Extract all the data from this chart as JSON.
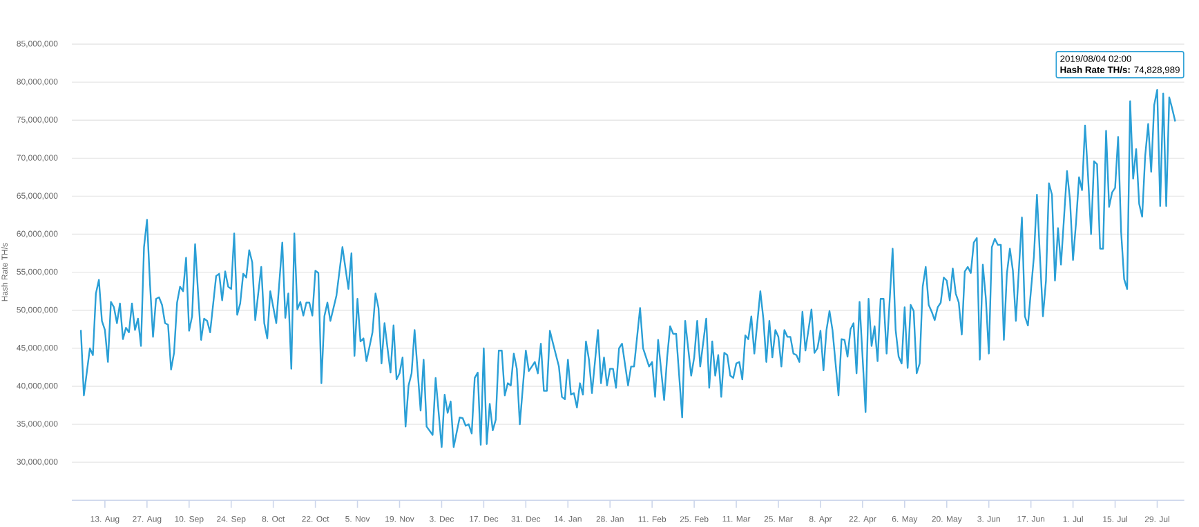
{
  "chart_data": {
    "type": "line",
    "ylabel": "Hash Rate TH/s",
    "xlim": [
      "2018-08-02",
      "2019-08-07"
    ],
    "ylim": [
      25000000,
      85000000
    ],
    "xticks": [
      {
        "value": "2018-08-13",
        "label": "13. Aug"
      },
      {
        "value": "2018-08-27",
        "label": "27. Aug"
      },
      {
        "value": "2018-09-10",
        "label": "10. Sep"
      },
      {
        "value": "2018-09-24",
        "label": "24. Sep"
      },
      {
        "value": "2018-10-08",
        "label": "8. Oct"
      },
      {
        "value": "2018-10-22",
        "label": "22. Oct"
      },
      {
        "value": "2018-11-05",
        "label": "5. Nov"
      },
      {
        "value": "2018-11-19",
        "label": "19. Nov"
      },
      {
        "value": "2018-12-03",
        "label": "3. Dec"
      },
      {
        "value": "2018-12-17",
        "label": "17. Dec"
      },
      {
        "value": "2018-12-31",
        "label": "31. Dec"
      },
      {
        "value": "2019-01-14",
        "label": "14. Jan"
      },
      {
        "value": "2019-01-28",
        "label": "28. Jan"
      },
      {
        "value": "2019-02-11",
        "label": "11. Feb"
      },
      {
        "value": "2019-02-25",
        "label": "25. Feb"
      },
      {
        "value": "2019-03-11",
        "label": "11. Mar"
      },
      {
        "value": "2019-03-25",
        "label": "25. Mar"
      },
      {
        "value": "2019-04-08",
        "label": "8. Apr"
      },
      {
        "value": "2019-04-22",
        "label": "22. Apr"
      },
      {
        "value": "2019-05-06",
        "label": "6. May"
      },
      {
        "value": "2019-05-20",
        "label": "20. May"
      },
      {
        "value": "2019-06-03",
        "label": "3. Jun"
      },
      {
        "value": "2019-06-17",
        "label": "17. Jun"
      },
      {
        "value": "2019-07-01",
        "label": "1. Jul"
      },
      {
        "value": "2019-07-15",
        "label": "15. Jul"
      },
      {
        "value": "2019-07-29",
        "label": "29. Jul"
      }
    ],
    "yticks": [
      {
        "value": 30000000,
        "label": "30,000,000"
      },
      {
        "value": 35000000,
        "label": "35,000,000"
      },
      {
        "value": 40000000,
        "label": "40,000,000"
      },
      {
        "value": 45000000,
        "label": "45,000,000"
      },
      {
        "value": 50000000,
        "label": "50,000,000"
      },
      {
        "value": 55000000,
        "label": "55,000,000"
      },
      {
        "value": 60000000,
        "label": "60,000,000"
      },
      {
        "value": 65000000,
        "label": "65,000,000"
      },
      {
        "value": 70000000,
        "label": "70,000,000"
      },
      {
        "value": 75000000,
        "label": "75,000,000"
      },
      {
        "value": 80000000,
        "label": "80,000,000"
      },
      {
        "value": 85000000,
        "label": "85,000,000"
      }
    ],
    "grid": "y",
    "x": [
      "2018-08-05",
      "2018-08-06",
      "2018-08-08",
      "2018-08-09",
      "2018-08-10",
      "2018-08-11",
      "2018-08-12",
      "2018-08-13",
      "2018-08-14",
      "2018-08-15",
      "2018-08-16",
      "2018-08-17",
      "2018-08-18",
      "2018-08-19",
      "2018-08-20",
      "2018-08-21",
      "2018-08-22",
      "2018-08-23",
      "2018-08-24",
      "2018-08-25",
      "2018-08-26",
      "2018-08-27",
      "2018-08-28",
      "2018-08-29",
      "2018-08-30",
      "2018-08-31",
      "2018-09-01",
      "2018-09-02",
      "2018-09-03",
      "2018-09-04",
      "2018-09-05",
      "2018-09-06",
      "2018-09-07",
      "2018-09-08",
      "2018-09-09",
      "2018-09-10",
      "2018-09-11",
      "2018-09-12",
      "2018-09-13",
      "2018-09-14",
      "2018-09-15",
      "2018-09-16",
      "2018-09-17",
      "2018-09-19",
      "2018-09-20",
      "2018-09-21",
      "2018-09-22",
      "2018-09-23",
      "2018-09-24",
      "2018-09-25",
      "2018-09-26",
      "2018-09-27",
      "2018-09-28",
      "2018-09-29",
      "2018-09-30",
      "2018-10-01",
      "2018-10-02",
      "2018-10-04",
      "2018-10-05",
      "2018-10-06",
      "2018-10-07",
      "2018-10-09",
      "2018-10-11",
      "2018-10-12",
      "2018-10-13",
      "2018-10-14",
      "2018-10-15",
      "2018-10-16",
      "2018-10-17",
      "2018-10-18",
      "2018-10-19",
      "2018-10-20",
      "2018-10-21",
      "2018-10-22",
      "2018-10-23",
      "2018-10-24",
      "2018-10-25",
      "2018-10-26",
      "2018-10-27",
      "2018-10-29",
      "2018-10-31",
      "2018-11-02",
      "2018-11-03",
      "2018-11-04",
      "2018-11-05",
      "2018-11-06",
      "2018-11-07",
      "2018-11-08",
      "2018-11-10",
      "2018-11-11",
      "2018-11-12",
      "2018-11-13",
      "2018-11-14",
      "2018-11-15",
      "2018-11-16",
      "2018-11-17",
      "2018-11-18",
      "2018-11-19",
      "2018-11-20",
      "2018-11-21",
      "2018-11-22",
      "2018-11-23",
      "2018-11-24",
      "2018-11-26",
      "2018-11-27",
      "2018-11-28",
      "2018-11-30",
      "2018-12-01",
      "2018-12-03",
      "2018-12-04",
      "2018-12-05",
      "2018-12-06",
      "2018-12-07",
      "2018-12-09",
      "2018-12-10",
      "2018-12-11",
      "2018-12-12",
      "2018-12-13",
      "2018-12-14",
      "2018-12-15",
      "2018-12-16",
      "2018-12-17",
      "2018-12-18",
      "2018-12-19",
      "2018-12-20",
      "2018-12-21",
      "2018-12-22",
      "2018-12-23",
      "2018-12-24",
      "2018-12-25",
      "2018-12-26",
      "2018-12-27",
      "2018-12-28",
      "2018-12-29",
      "2018-12-31",
      "2019-01-01",
      "2019-01-02",
      "2019-01-03",
      "2019-01-04",
      "2019-01-05",
      "2019-01-06",
      "2019-01-07",
      "2019-01-08",
      "2019-01-09",
      "2019-01-11",
      "2019-01-12",
      "2019-01-13",
      "2019-01-14",
      "2019-01-15",
      "2019-01-16",
      "2019-01-17",
      "2019-01-18",
      "2019-01-19",
      "2019-01-20",
      "2019-01-21",
      "2019-01-22",
      "2019-01-24",
      "2019-01-25",
      "2019-01-26",
      "2019-01-27",
      "2019-01-28",
      "2019-01-29",
      "2019-01-30",
      "2019-01-31",
      "2019-02-01",
      "2019-02-03",
      "2019-02-04",
      "2019-02-05",
      "2019-02-07",
      "2019-02-08",
      "2019-02-10",
      "2019-02-11",
      "2019-02-12",
      "2019-02-13",
      "2019-02-15",
      "2019-02-16",
      "2019-02-17",
      "2019-02-18",
      "2019-02-19",
      "2019-02-21",
      "2019-02-22",
      "2019-02-24",
      "2019-02-25",
      "2019-02-26",
      "2019-02-27",
      "2019-03-01",
      "2019-03-02",
      "2019-03-03",
      "2019-03-04",
      "2019-03-05",
      "2019-03-06",
      "2019-03-07",
      "2019-03-08",
      "2019-03-09",
      "2019-03-10",
      "2019-03-11",
      "2019-03-12",
      "2019-03-13",
      "2019-03-14",
      "2019-03-15",
      "2019-03-16",
      "2019-03-17",
      "2019-03-19",
      "2019-03-20",
      "2019-03-21",
      "2019-03-22",
      "2019-03-23",
      "2019-03-24",
      "2019-03-25",
      "2019-03-26",
      "2019-03-27",
      "2019-03-28",
      "2019-03-29",
      "2019-03-30",
      "2019-03-31",
      "2019-04-01",
      "2019-04-02",
      "2019-04-03",
      "2019-04-05",
      "2019-04-06",
      "2019-04-07",
      "2019-04-08",
      "2019-04-09",
      "2019-04-10",
      "2019-04-11",
      "2019-04-12",
      "2019-04-14",
      "2019-04-15",
      "2019-04-16",
      "2019-04-17",
      "2019-04-18",
      "2019-04-19",
      "2019-04-20",
      "2019-04-21",
      "2019-04-23",
      "2019-04-24",
      "2019-04-25",
      "2019-04-26",
      "2019-04-27",
      "2019-04-28",
      "2019-04-29",
      "2019-04-30",
      "2019-05-02",
      "2019-05-03",
      "2019-05-04",
      "2019-05-05",
      "2019-05-06",
      "2019-05-07",
      "2019-05-08",
      "2019-05-09",
      "2019-05-10",
      "2019-05-11",
      "2019-05-12",
      "2019-05-13",
      "2019-05-14",
      "2019-05-15",
      "2019-05-16",
      "2019-05-17",
      "2019-05-18",
      "2019-05-19",
      "2019-05-20",
      "2019-05-21",
      "2019-05-22",
      "2019-05-23",
      "2019-05-24",
      "2019-05-25",
      "2019-05-26",
      "2019-05-27",
      "2019-05-28",
      "2019-05-29",
      "2019-05-30",
      "2019-05-31",
      "2019-06-01",
      "2019-06-02",
      "2019-06-03",
      "2019-06-04",
      "2019-06-05",
      "2019-06-06",
      "2019-06-07",
      "2019-06-08",
      "2019-06-09",
      "2019-06-10",
      "2019-06-11",
      "2019-06-12",
      "2019-06-14",
      "2019-06-15",
      "2019-06-16",
      "2019-06-18",
      "2019-06-19",
      "2019-06-20",
      "2019-06-21",
      "2019-06-22",
      "2019-06-23",
      "2019-06-24",
      "2019-06-25",
      "2019-06-26",
      "2019-06-27",
      "2019-06-29",
      "2019-06-30",
      "2019-07-01",
      "2019-07-02",
      "2019-07-03",
      "2019-07-04",
      "2019-07-05",
      "2019-07-06",
      "2019-07-07",
      "2019-07-08",
      "2019-07-09",
      "2019-07-10",
      "2019-07-11",
      "2019-07-12",
      "2019-07-13",
      "2019-07-14",
      "2019-07-15",
      "2019-07-16",
      "2019-07-17",
      "2019-07-18",
      "2019-07-19",
      "2019-07-20",
      "2019-07-21",
      "2019-07-22",
      "2019-07-23",
      "2019-07-24",
      "2019-07-25",
      "2019-07-26",
      "2019-07-27",
      "2019-07-28",
      "2019-07-29",
      "2019-07-30",
      "2019-07-31",
      "2019-08-01",
      "2019-08-02",
      "2019-08-03",
      "2019-08-04"
    ],
    "series": [
      {
        "color": "#2a9fd6",
        "values": [
          47400000,
          38800000,
          45000000,
          44100000,
          52200000,
          54000000,
          48600000,
          47400000,
          43200000,
          51100000,
          50400000,
          48300000,
          50900000,
          46200000,
          47700000,
          47100000,
          50900000,
          47400000,
          48900000,
          45300000,
          58300000,
          61900000,
          53400000,
          46500000,
          51500000,
          51700000,
          50700000,
          48300000,
          48100000,
          42200000,
          44400000,
          51000000,
          53100000,
          52500000,
          56900000,
          47300000,
          49200000,
          58700000,
          52200000,
          46100000,
          48900000,
          48600000,
          47100000,
          54500000,
          54800000,
          51300000,
          55100000,
          53100000,
          52800000,
          60100000,
          49400000,
          50900000,
          54800000,
          54300000,
          57900000,
          56300000,
          48700000,
          55700000,
          48300000,
          46300000,
          52500000,
          48300000,
          58900000,
          49000000,
          52200000,
          42300000,
          60100000,
          50100000,
          51100000,
          49300000,
          51000000,
          51000000,
          49300000,
          55200000,
          54900000,
          40400000,
          49200000,
          51000000,
          48600000,
          51900000,
          58300000,
          52800000,
          57500000,
          44000000,
          51500000,
          45900000,
          46300000,
          43300000,
          47100000,
          52200000,
          50300000,
          43000000,
          48300000,
          45000000,
          41800000,
          48000000,
          40900000,
          41700000,
          43800000,
          34700000,
          40100000,
          41700000,
          47400000,
          36800000,
          43500000,
          34700000,
          33600000,
          41100000,
          32000000,
          38900000,
          36500000,
          38000000,
          32000000,
          35900000,
          35800000,
          34800000,
          35000000,
          33800000,
          41100000,
          41800000,
          32300000,
          45000000,
          32400000,
          37700000,
          34200000,
          35600000,
          44700000,
          44700000,
          38800000,
          40400000,
          40100000,
          44300000,
          42300000,
          35000000,
          44700000,
          42000000,
          42600000,
          43200000,
          41700000,
          45600000,
          39400000,
          39400000,
          47300000,
          45700000,
          42600000,
          38600000,
          38300000,
          43500000,
          38900000,
          39100000,
          37200000,
          40400000,
          38900000,
          45900000,
          43500000,
          39100000,
          47400000,
          40400000,
          43800000,
          40100000,
          42300000,
          42300000,
          39800000,
          45000000,
          45600000,
          40100000,
          42600000,
          42600000,
          50300000,
          45000000,
          42600000,
          43200000,
          38600000,
          46100000,
          38200000,
          43800000,
          47900000,
          46900000,
          46900000,
          35900000,
          48600000,
          41400000,
          43800000,
          48600000,
          42600000,
          48900000,
          39800000,
          45900000,
          41400000,
          44100000,
          38600000,
          44400000,
          44100000,
          41400000,
          41100000,
          43000000,
          43200000,
          40900000,
          46700000,
          46200000,
          49200000,
          44300000,
          52500000,
          48900000,
          43200000,
          48600000,
          43800000,
          47400000,
          46500000,
          42600000,
          47400000,
          46500000,
          46500000,
          44300000,
          44100000,
          43200000,
          49800000,
          44700000,
          50100000,
          44400000,
          45000000,
          47300000,
          42100000,
          47400000,
          49900000,
          47400000,
          38800000,
          46200000,
          46100000,
          43900000,
          47500000,
          48300000,
          41700000,
          51100000,
          36600000,
          51500000,
          45300000,
          47900000,
          43300000,
          51500000,
          51500000,
          44300000,
          58100000,
          47400000,
          43900000,
          43000000,
          50400000,
          42400000,
          50700000,
          49900000,
          41700000,
          43000000,
          53100000,
          55700000,
          50700000,
          49800000,
          48700000,
          50400000,
          51000000,
          54300000,
          53900000,
          51300000,
          55500000,
          52200000,
          51000000,
          46800000,
          55100000,
          55700000,
          54900000,
          58900000,
          59500000,
          43500000,
          56000000,
          51600000,
          44300000,
          58300000,
          59400000,
          58600000,
          58600000,
          46100000,
          54800000,
          58100000,
          55200000,
          48600000,
          62200000,
          49200000,
          48000000,
          57100000,
          65200000,
          57100000,
          49200000,
          53900000,
          66700000,
          65200000,
          53900000,
          60800000,
          56000000,
          68300000,
          64500000,
          56600000,
          61500000,
          67500000,
          65800000,
          74300000,
          67600000,
          60000000,
          69600000,
          69200000,
          58100000,
          58100000,
          73600000,
          63600000,
          65500000,
          66100000,
          72800000,
          60300000,
          54100000,
          52800000,
          77500000,
          67300000,
          71200000,
          64000000,
          62300000,
          70300000,
          74500000,
          68200000,
          77000000,
          79000000,
          63700000,
          78500000,
          63700000,
          78000000,
          76500000,
          74828989
        ]
      }
    ],
    "annotations": [
      "2019/08/04 02:00",
      "**Hash Rate TH/s:** 74,828,989"
    ]
  }
}
